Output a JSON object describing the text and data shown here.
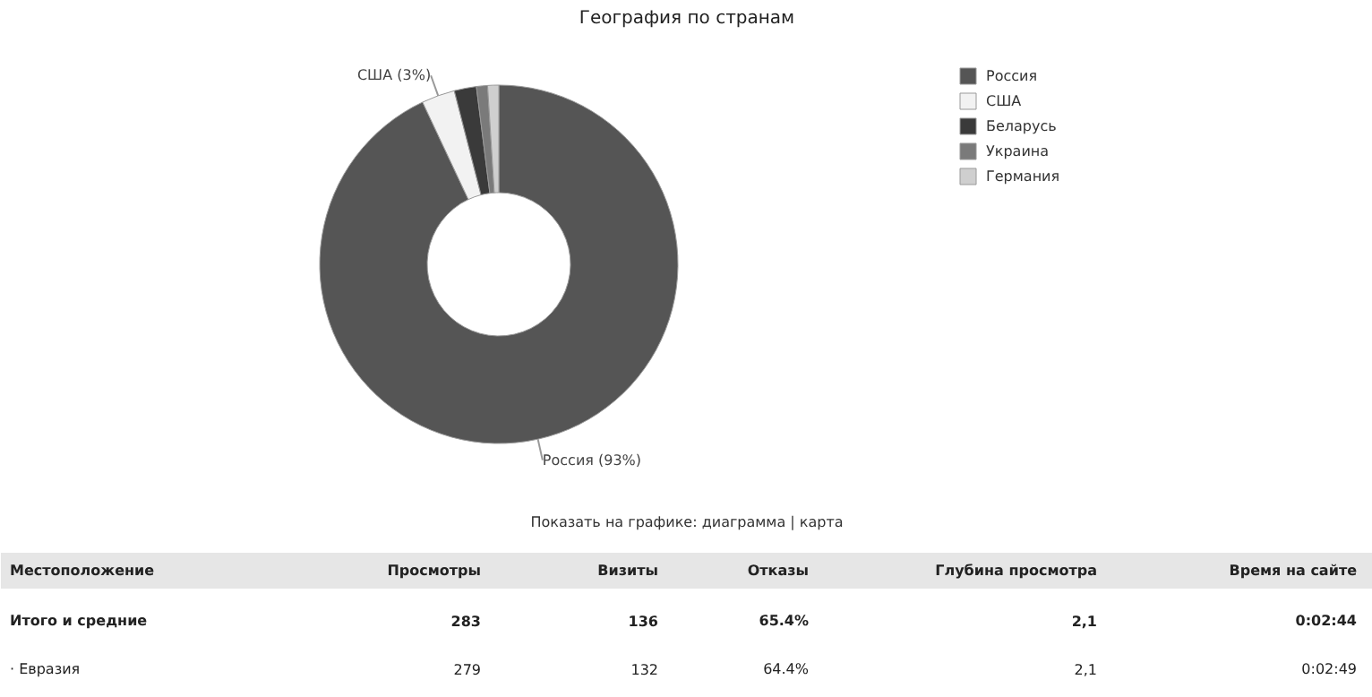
{
  "chart_data": {
    "type": "donut",
    "title": "География по странам",
    "categories": [
      "Россия",
      "США",
      "Беларусь",
      "Украина",
      "Германия"
    ],
    "values": [
      93,
      3,
      2,
      1,
      1
    ],
    "colors": [
      "#555555",
      "#f2f2f2",
      "#3a3a3a",
      "#7a7a7a",
      "#cfcfcf"
    ],
    "value_labels": [
      "Россия (93%)",
      "США (3%)",
      null,
      null,
      null
    ],
    "legend": "top right",
    "annotations": [
      "Показать на графике: диаграмма | карта",
      "Местоположение",
      "Просмотры",
      "Визиты",
      "Отказы",
      "Глубина просмотра",
      "Время на сайте",
      "Итого и средние",
      "283",
      "136",
      "65.4%",
      "2,1",
      "0:02:44",
      "· Евразия",
      "279",
      "132",
      "64.4%",
      "2,1",
      "0:02:49"
    ]
  }
}
